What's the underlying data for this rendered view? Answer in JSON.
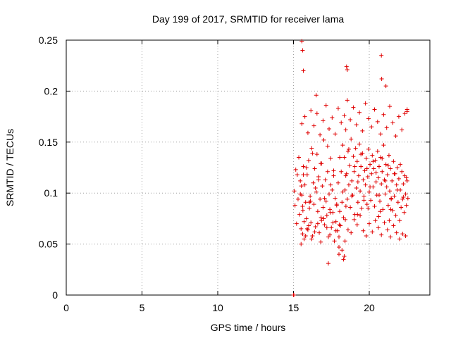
{
  "chart_data": {
    "type": "scatter",
    "title": "Day 199 of 2017, SRMTID for receiver lama",
    "xlabel": "GPS time / hours",
    "ylabel": "SRMTID / TECUs",
    "xlim": [
      0,
      24
    ],
    "ylim": [
      0,
      0.25
    ],
    "xticks": [
      "0",
      "5",
      "10",
      "15",
      "20"
    ],
    "yticks": [
      "0",
      "0.05",
      "0.1",
      "0.15",
      "0.2",
      "0.25"
    ],
    "grid": true,
    "marker": "+",
    "series": [
      {
        "name": "SRMTID",
        "color": "#e00000",
        "x": [
          15.0,
          15.02,
          15.05,
          15.1,
          15.15,
          15.2,
          15.25,
          15.3,
          15.35,
          15.4,
          15.45,
          15.5,
          15.55,
          15.6,
          15.65,
          15.7,
          15.75,
          15.8,
          15.85,
          15.9,
          15.95,
          16.0,
          16.05,
          16.1,
          16.15,
          16.2,
          16.25,
          16.3,
          16.35,
          16.4,
          16.45,
          16.5,
          16.55,
          16.6,
          16.65,
          16.7,
          16.75,
          16.8,
          16.85,
          16.9,
          16.95,
          17.0,
          17.05,
          17.1,
          17.15,
          17.2,
          17.25,
          17.3,
          17.35,
          17.4,
          17.45,
          17.5,
          17.55,
          17.6,
          17.65,
          17.7,
          17.75,
          17.8,
          17.85,
          17.9,
          17.95,
          18.0,
          18.05,
          18.1,
          18.15,
          18.2,
          18.25,
          18.3,
          18.35,
          18.4,
          18.45,
          18.5,
          18.55,
          18.6,
          18.65,
          18.7,
          18.75,
          18.8,
          18.85,
          18.9,
          18.95,
          19.0,
          19.05,
          19.1,
          19.15,
          19.2,
          19.25,
          19.3,
          19.35,
          19.4,
          19.45,
          19.5,
          19.55,
          19.6,
          19.65,
          19.7,
          19.75,
          19.8,
          19.85,
          19.9,
          19.95,
          20.0,
          20.05,
          20.1,
          20.15,
          20.2,
          20.25,
          20.3,
          20.35,
          20.4,
          20.45,
          20.5,
          20.55,
          20.6,
          20.65,
          20.7,
          20.75,
          20.8,
          20.85,
          20.9,
          20.95,
          21.0,
          21.05,
          21.1,
          21.15,
          21.2,
          21.25,
          21.3,
          21.35,
          21.4,
          21.45,
          21.5,
          21.55,
          21.6,
          21.65,
          21.7,
          21.75,
          21.8,
          21.85,
          21.9,
          21.95,
          22.0,
          22.05,
          22.1,
          22.15,
          22.2,
          22.25,
          22.3,
          22.35,
          22.4,
          22.45,
          22.5,
          22.55,
          15.5,
          15.6,
          15.7,
          15.8,
          15.9,
          16.0,
          16.2,
          16.4,
          16.6,
          16.8,
          17.0,
          17.2,
          17.4,
          17.6,
          17.8,
          18.0,
          18.2,
          18.4,
          18.6,
          18.8,
          19.0,
          19.2,
          19.4,
          19.6,
          19.8,
          20.0,
          20.2,
          20.4,
          20.6,
          20.8,
          21.0,
          21.2,
          21.4,
          21.6,
          21.8,
          22.0,
          22.2,
          22.4,
          15.55,
          15.75,
          15.95,
          16.15,
          16.35,
          16.55,
          16.75,
          16.95,
          17.15,
          17.35,
          17.55,
          17.75,
          17.95,
          18.15,
          18.35,
          18.55,
          18.75,
          18.95,
          19.15,
          19.35,
          19.55,
          19.75,
          19.95,
          20.15,
          20.35,
          20.55,
          20.75,
          20.95,
          21.15,
          21.35,
          21.55,
          21.75,
          21.95,
          22.15,
          22.35,
          22.5,
          15.45,
          15.65,
          15.85,
          16.05,
          16.25,
          16.45,
          16.65,
          16.85,
          17.05,
          17.25,
          17.45,
          17.65,
          17.85,
          18.05,
          18.25,
          18.45,
          18.65,
          18.85,
          19.05,
          19.25,
          19.45,
          19.65,
          19.85,
          20.05,
          20.25,
          20.45,
          20.65,
          20.85,
          21.05,
          21.25,
          21.45,
          21.65,
          21.85,
          22.05,
          22.25,
          22.45,
          15.52,
          15.62,
          16.12,
          16.82,
          17.42,
          18.02,
          18.42,
          18.46,
          19.22,
          19.92,
          20.62,
          20.72,
          21.32,
          21.42,
          15.55,
          15.6,
          18.5,
          18.55,
          20.8,
          20.82,
          21.1,
          18.0,
          18.3,
          18.35,
          17.3,
          15.65,
          16.5,
          22.5
        ],
        "y": [
          0.0,
          0.0,
          0.102,
          0.088,
          0.123,
          0.07,
          0.118,
          0.094,
          0.135,
          0.079,
          0.112,
          0.065,
          0.098,
          0.087,
          0.126,
          0.055,
          0.108,
          0.091,
          0.075,
          0.118,
          0.064,
          0.132,
          0.085,
          0.097,
          0.071,
          0.144,
          0.058,
          0.11,
          0.089,
          0.124,
          0.067,
          0.101,
          0.138,
          0.082,
          0.116,
          0.061,
          0.094,
          0.129,
          0.073,
          0.107,
          0.086,
          0.152,
          0.069,
          0.113,
          0.092,
          0.078,
          0.121,
          0.057,
          0.099,
          0.084,
          0.134,
          0.066,
          0.103,
          0.081,
          0.117,
          0.053,
          0.095,
          0.072,
          0.088,
          0.063,
          0.11,
          0.047,
          0.082,
          0.068,
          0.121,
          0.091,
          0.147,
          0.076,
          0.135,
          0.103,
          0.162,
          0.119,
          0.094,
          0.141,
          0.108,
          0.127,
          0.086,
          0.153,
          0.112,
          0.098,
          0.136,
          0.121,
          0.079,
          0.144,
          0.105,
          0.131,
          0.091,
          0.117,
          0.148,
          0.102,
          0.126,
          0.085,
          0.139,
          0.113,
          0.097,
          0.122,
          0.108,
          0.134,
          0.089,
          0.116,
          0.143,
          0.101,
          0.128,
          0.093,
          0.119,
          0.137,
          0.106,
          0.124,
          0.087,
          0.132,
          0.111,
          0.098,
          0.141,
          0.115,
          0.126,
          0.092,
          0.135,
          0.109,
          0.121,
          0.084,
          0.147,
          0.113,
          0.099,
          0.128,
          0.106,
          0.118,
          0.088,
          0.137,
          0.102,
          0.124,
          0.095,
          0.112,
          0.083,
          0.131,
          0.097,
          0.119,
          0.078,
          0.108,
          0.125,
          0.091,
          0.114,
          0.073,
          0.103,
          0.086,
          0.121,
          0.094,
          0.109,
          0.081,
          0.117,
          0.099,
          0.088,
          0.112,
          0.095,
          0.05,
          0.06,
          0.072,
          0.058,
          0.065,
          0.068,
          0.055,
          0.062,
          0.07,
          0.052,
          0.075,
          0.066,
          0.059,
          0.071,
          0.063,
          0.057,
          0.044,
          0.053,
          0.064,
          0.061,
          0.074,
          0.069,
          0.078,
          0.063,
          0.058,
          0.07,
          0.062,
          0.073,
          0.066,
          0.059,
          0.071,
          0.064,
          0.057,
          0.068,
          0.061,
          0.055,
          0.06,
          0.058,
          0.168,
          0.175,
          0.159,
          0.181,
          0.166,
          0.178,
          0.157,
          0.171,
          0.186,
          0.163,
          0.174,
          0.158,
          0.183,
          0.169,
          0.176,
          0.191,
          0.172,
          0.184,
          0.167,
          0.179,
          0.161,
          0.188,
          0.173,
          0.165,
          0.182,
          0.17,
          0.158,
          0.177,
          0.164,
          0.185,
          0.169,
          0.156,
          0.175,
          0.162,
          0.178,
          0.18,
          0.099,
          0.118,
          0.125,
          0.091,
          0.139,
          0.105,
          0.113,
          0.129,
          0.095,
          0.146,
          0.108,
          0.122,
          0.089,
          0.135,
          0.101,
          0.117,
          0.143,
          0.097,
          0.126,
          0.111,
          0.138,
          0.093,
          0.124,
          0.106,
          0.131,
          0.12,
          0.098,
          0.134,
          0.112,
          0.127,
          0.094,
          0.119,
          0.103,
          0.128,
          0.096,
          0.115,
          0.107,
          0.083,
          0.092,
          0.076,
          0.081,
          0.069,
          0.074,
          0.087,
          0.079,
          0.085,
          0.077,
          0.082,
          0.073,
          0.084,
          0.249,
          0.24,
          0.224,
          0.221,
          0.235,
          0.212,
          0.205,
          0.04,
          0.035,
          0.038,
          0.031,
          0.22,
          0.196,
          0.182
        ]
      }
    ]
  }
}
